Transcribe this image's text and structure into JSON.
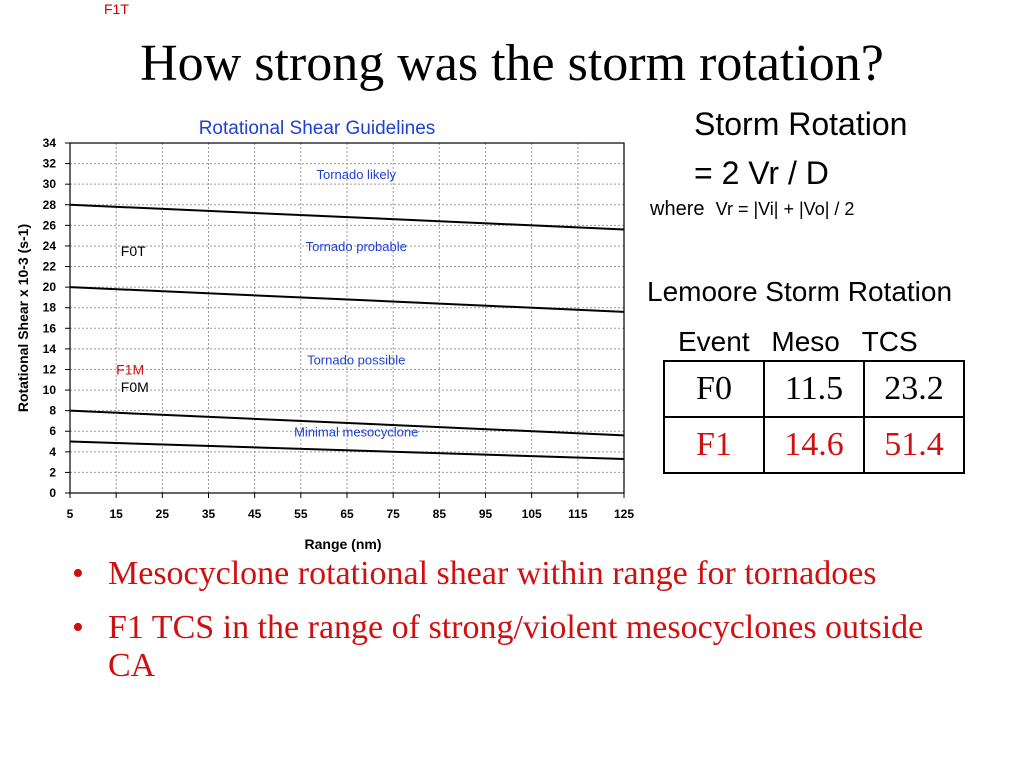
{
  "slide": {
    "title": "How strong was the storm rotation?",
    "corner_label": "F1T",
    "bullets": [
      "Mesocyclone rotational shear within range for tornadoes",
      "F1 TCS in the range of strong/violent mesocyclones outside CA"
    ],
    "colors": {
      "accent_red": "#d01010",
      "chart_title_blue": "#1f3fd6",
      "band_label_blue": "#1f3fd6"
    }
  },
  "formula": {
    "title": "Storm Rotation",
    "equation": "= 2 Vr / D",
    "where_word": "where",
    "where_expr": "Vr = |Vi| + |Vo| / 2"
  },
  "table": {
    "title": "Lemoore Storm Rotation",
    "headers": [
      "Event",
      "Meso",
      "TCS"
    ],
    "rows": [
      {
        "cells": [
          "F0",
          "11.5",
          "23.2"
        ],
        "color": "#000000"
      },
      {
        "cells": [
          "F1",
          "14.6",
          "51.4"
        ],
        "color": "#d01010"
      }
    ]
  },
  "chart_data": {
    "type": "line",
    "title": "Rotational Shear Guidelines",
    "xlabel": "Range (nm)",
    "ylabel": "Rotational Shear x 10-3 (s-1)",
    "xlim": [
      5,
      125
    ],
    "ylim": [
      0,
      34
    ],
    "x_ticks": [
      5,
      15,
      25,
      35,
      45,
      55,
      65,
      75,
      85,
      95,
      105,
      115,
      125
    ],
    "y_ticks": [
      0,
      2,
      4,
      6,
      8,
      10,
      12,
      14,
      16,
      18,
      20,
      22,
      24,
      26,
      28,
      30,
      32,
      34
    ],
    "grid": true,
    "series": [
      {
        "x": [
          5,
          125
        ],
        "y": [
          28,
          25.6
        ]
      },
      {
        "x": [
          5,
          125
        ],
        "y": [
          20,
          17.6
        ]
      },
      {
        "x": [
          5,
          125
        ],
        "y": [
          8,
          5.6
        ]
      },
      {
        "x": [
          5,
          125
        ],
        "y": [
          5,
          3.3
        ]
      }
    ],
    "band_labels": [
      {
        "text": "Tornado likely",
        "x": 67,
        "y": 30.5
      },
      {
        "text": "Tornado probable",
        "x": 67,
        "y": 23.5
      },
      {
        "text": "Tornado possible",
        "x": 67,
        "y": 12.5
      },
      {
        "text": "Minimal mesocyclone",
        "x": 67,
        "y": 5.5
      }
    ],
    "annotations": [
      {
        "text": "F0T",
        "x": 16,
        "y": 23,
        "color": "#000000"
      },
      {
        "text": "F1M",
        "x": 15,
        "y": 11.5,
        "color": "#d01010"
      },
      {
        "text": "F0M",
        "x": 16,
        "y": 9.8,
        "color": "#000000"
      }
    ]
  }
}
